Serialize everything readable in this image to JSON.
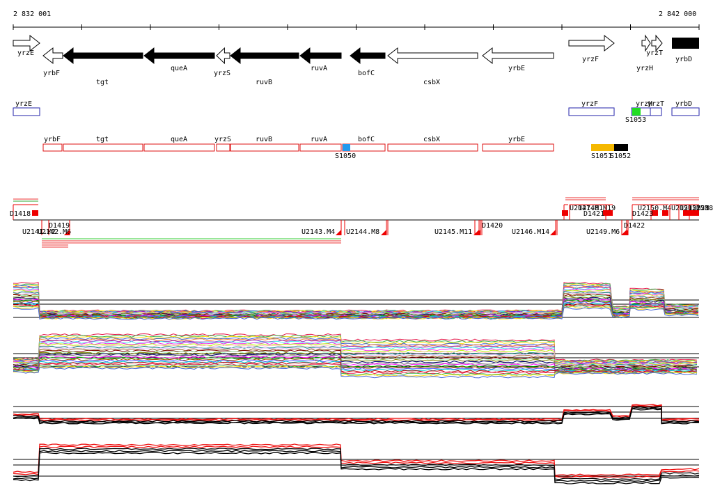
{
  "coordinates": {
    "start": "2 832 001",
    "end": "2 842 000"
  },
  "genes_top": [
    {
      "name": "yrzE",
      "strand": "+",
      "fill": "white"
    },
    {
      "name": "yrbF",
      "strand": "-",
      "fill": "white"
    },
    {
      "name": "tgt",
      "strand": "-",
      "fill": "black"
    },
    {
      "name": "queA",
      "strand": "-",
      "fill": "black"
    },
    {
      "name": "yrzS",
      "strand": "-",
      "fill": "white"
    },
    {
      "name": "ruvB",
      "strand": "-",
      "fill": "black"
    },
    {
      "name": "ruvA",
      "strand": "-",
      "fill": "black"
    },
    {
      "name": "bofC",
      "strand": "-",
      "fill": "black"
    },
    {
      "name": "csbX",
      "strand": "-",
      "fill": "white"
    },
    {
      "name": "yrbE",
      "strand": "-",
      "fill": "white"
    },
    {
      "name": "yrzF",
      "strand": "+",
      "fill": "white"
    },
    {
      "name": "yrzH",
      "strand": "+",
      "fill": "white"
    },
    {
      "name": "yrzT",
      "strand": "+",
      "fill": "white"
    },
    {
      "name": "yrbD",
      "strand": "+",
      "fill": "black"
    }
  ],
  "annot_plus": [
    {
      "name": "yrzE"
    },
    {
      "name": "yrzF"
    },
    {
      "name": "yrzH"
    },
    {
      "name": "yrzT"
    },
    {
      "name": "yrbD"
    }
  ],
  "annot_minus": [
    {
      "name": "yrbF"
    },
    {
      "name": "tgt"
    },
    {
      "name": "queA"
    },
    {
      "name": "yrzS"
    },
    {
      "name": "ruvB"
    },
    {
      "name": "ruvA"
    },
    {
      "name": "bofC"
    },
    {
      "name": "csbX"
    },
    {
      "name": "yrbE"
    }
  ],
  "small_features": [
    {
      "name": "S1053",
      "color": "#22dd22"
    },
    {
      "name": "S1050",
      "color": "#2299ee"
    },
    {
      "name": "S1051",
      "color": "#f5b800"
    },
    {
      "name": "S1052",
      "color": "#000000"
    }
  ],
  "segments": [
    "D1418",
    "D1419",
    "U2141.M2",
    "U2142.M6",
    "U2143.M4",
    "U2144.M8",
    "U2145.M11",
    "D1420",
    "U2146.M14",
    "U2147.M1",
    "U2148.M19",
    "D1421",
    "U2149.M6",
    "D1422",
    "U2150.M4",
    "D1423",
    "U2151.M21",
    "U2152.M8",
    "U2153.M21"
  ],
  "colors": {
    "plus_strand": "#2222aa",
    "minus_strand": "#dd1111",
    "segment": "#ee0000"
  }
}
